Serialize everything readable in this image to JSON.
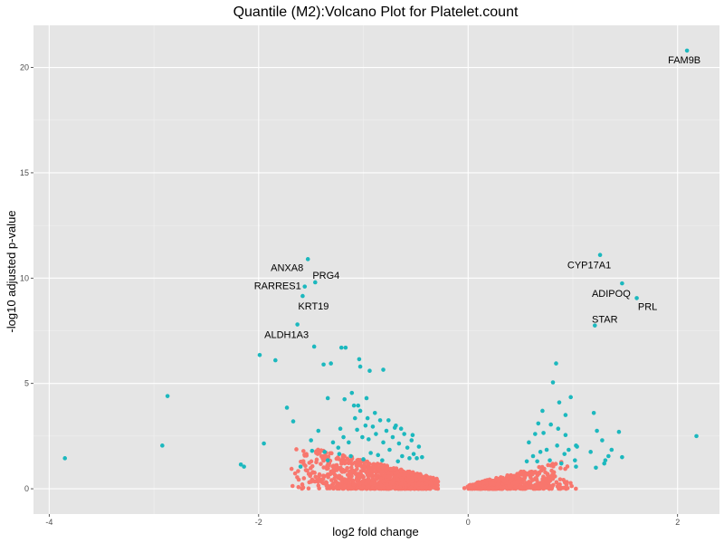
{
  "chart_data": {
    "type": "scatter",
    "title": "Quantile (M2):Volcano Plot for Platelet.count",
    "xlabel": "log2 fold change",
    "ylabel": "-log10 adjusted p-value",
    "xlim": [
      -4.15,
      2.4
    ],
    "ylim": [
      -1.2,
      22
    ],
    "x_ticks": [
      -4,
      -2,
      0,
      2
    ],
    "y_ticks": [
      0,
      5,
      10,
      15,
      20
    ],
    "grid": true,
    "legend": "none",
    "background": "#e5e5e5",
    "colors": {
      "significant": "#1cb8be",
      "not_significant": "#f8766d"
    },
    "series": [
      {
        "color_key": "significant",
        "points": [
          [
            2.09,
            20.8
          ],
          [
            1.26,
            11.1
          ],
          [
            1.47,
            9.75
          ],
          [
            1.61,
            9.05
          ],
          [
            1.21,
            7.75
          ],
          [
            -1.53,
            10.9
          ],
          [
            -1.46,
            9.8
          ],
          [
            -1.56,
            9.6
          ],
          [
            -1.58,
            9.15
          ],
          [
            -1.63,
            7.8
          ],
          [
            -1.99,
            6.35
          ],
          [
            -1.84,
            6.1
          ],
          [
            -1.47,
            6.75
          ],
          [
            -1.21,
            6.7
          ],
          [
            -1.17,
            6.7
          ],
          [
            -1.31,
            5.95
          ],
          [
            -1.38,
            5.9
          ],
          [
            -1.04,
            6.15
          ],
          [
            -1.03,
            5.8
          ],
          [
            -0.94,
            5.6
          ],
          [
            -0.81,
            5.65
          ],
          [
            -1.11,
            4.55
          ],
          [
            -0.97,
            4.3
          ],
          [
            -1.09,
            3.95
          ],
          [
            -1.18,
            4.25
          ],
          [
            -1.34,
            4.3
          ],
          [
            -1.73,
            3.85
          ],
          [
            -1.67,
            3.2
          ],
          [
            -2.87,
            4.4
          ],
          [
            -2.92,
            2.05
          ],
          [
            -3.85,
            1.45
          ],
          [
            -2.14,
            1.05
          ],
          [
            -2.17,
            1.15
          ],
          [
            -1.95,
            2.15
          ],
          [
            -1.6,
            1.05
          ],
          [
            -1.5,
            2.3
          ],
          [
            -1.49,
            1.8
          ],
          [
            -1.43,
            2.75
          ],
          [
            -1.37,
            1.75
          ],
          [
            -1.34,
            1.35
          ],
          [
            -1.29,
            2.2
          ],
          [
            -1.24,
            1.95
          ],
          [
            -1.22,
            2.85
          ],
          [
            -1.19,
            2.45
          ],
          [
            -1.14,
            2.2
          ],
          [
            -1.08,
            3.35
          ],
          [
            -1.06,
            2.8
          ],
          [
            -1.03,
            3.7
          ],
          [
            -1.01,
            2.45
          ],
          [
            -0.98,
            3.0
          ],
          [
            -0.95,
            2.35
          ],
          [
            -0.93,
            1.7
          ],
          [
            -0.91,
            2.95
          ],
          [
            -0.88,
            2.6
          ],
          [
            -0.86,
            1.6
          ],
          [
            -0.84,
            3.25
          ],
          [
            -0.81,
            2.2
          ],
          [
            -0.78,
            2.75
          ],
          [
            -0.75,
            1.85
          ],
          [
            -0.72,
            2.45
          ],
          [
            -0.69,
            3.0
          ],
          [
            -0.66,
            2.15
          ],
          [
            -0.63,
            1.55
          ],
          [
            -0.61,
            2.6
          ],
          [
            -0.58,
            1.95
          ],
          [
            -0.56,
            1.45
          ],
          [
            -0.54,
            2.3
          ],
          [
            -0.52,
            1.65
          ],
          [
            -0.49,
            1.45
          ],
          [
            -0.47,
            2.0
          ],
          [
            -0.44,
            1.5
          ],
          [
            -1.05,
            3.95
          ],
          [
            -0.96,
            3.35
          ],
          [
            -0.89,
            3.6
          ],
          [
            -0.76,
            3.25
          ],
          [
            -0.7,
            2.9
          ],
          [
            -0.64,
            2.85
          ],
          [
            -0.53,
            2.55
          ],
          [
            -1.23,
            1.65
          ],
          [
            -1.12,
            1.55
          ],
          [
            -1.0,
            1.4
          ],
          [
            -0.82,
            1.35
          ],
          [
            -0.67,
            1.3
          ],
          [
            2.18,
            2.5
          ],
          [
            1.44,
            2.7
          ],
          [
            1.34,
            1.55
          ],
          [
            1.3,
            1.2
          ],
          [
            1.28,
            2.3
          ],
          [
            1.23,
            2.75
          ],
          [
            1.22,
            1.0
          ],
          [
            1.2,
            3.6
          ],
          [
            1.17,
            1.75
          ],
          [
            1.04,
            2.0
          ],
          [
            1.03,
            1.05
          ],
          [
            1.02,
            1.35
          ],
          [
            1.03,
            2.05
          ],
          [
            0.98,
            4.35
          ],
          [
            0.96,
            1.85
          ],
          [
            0.93,
            2.55
          ],
          [
            0.93,
            3.5
          ],
          [
            0.92,
            1.65
          ],
          [
            0.89,
            1.2
          ],
          [
            0.86,
            2.85
          ],
          [
            0.85,
            2.05
          ],
          [
            0.84,
            5.95
          ],
          [
            0.81,
            5.05
          ],
          [
            0.79,
            3.05
          ],
          [
            0.78,
            1.35
          ],
          [
            0.75,
            1.85
          ],
          [
            0.72,
            2.65
          ],
          [
            0.69,
            1.75
          ],
          [
            0.67,
            3.1
          ],
          [
            0.66,
            1.3
          ],
          [
            0.64,
            2.6
          ],
          [
            0.62,
            1.55
          ],
          [
            0.58,
            2.2
          ],
          [
            0.56,
            1.3
          ],
          [
            0.71,
            3.7
          ],
          [
            0.87,
            4.1
          ],
          [
            1.37,
            1.85
          ],
          [
            1.31,
            1.35
          ],
          [
            1.47,
            1.5
          ]
        ]
      },
      {
        "color_key": "not_significant",
        "points": []
      }
    ],
    "annotations": [
      {
        "text": "FAM9B",
        "x": 2.09,
        "y": 20.8,
        "dx": -3,
        "dy": 14,
        "anchor": "middle"
      },
      {
        "text": "CYP17A1",
        "x": 1.26,
        "y": 11.1,
        "dx": -12,
        "dy": 15,
        "anchor": "middle"
      },
      {
        "text": "ADIPOQ",
        "x": 1.47,
        "y": 9.75,
        "dx": -12,
        "dy": 15,
        "anchor": "middle"
      },
      {
        "text": "PRL",
        "x": 1.61,
        "y": 9.05,
        "dx": 12,
        "dy": 13,
        "anchor": "middle"
      },
      {
        "text": "STAR",
        "x": 1.21,
        "y": 7.75,
        "dx": 11,
        "dy": -3,
        "anchor": "middle"
      },
      {
        "text": "ANXA8",
        "x": -1.53,
        "y": 10.9,
        "dx": -23,
        "dy": 13,
        "anchor": "middle"
      },
      {
        "text": "PRG4",
        "x": -1.46,
        "y": 9.8,
        "dx": 12,
        "dy": -4,
        "anchor": "middle"
      },
      {
        "text": "RARRES1",
        "x": -1.56,
        "y": 9.6,
        "dx": -30,
        "dy": 3,
        "anchor": "middle"
      },
      {
        "text": "KRT19",
        "x": -1.58,
        "y": 9.15,
        "dx": 12,
        "dy": 15,
        "anchor": "middle"
      },
      {
        "text": "ALDH1A3",
        "x": -1.63,
        "y": 7.8,
        "dx": -12,
        "dy": 15,
        "anchor": "middle"
      }
    ],
    "nonsignificant_cloud": {
      "count": 1700,
      "left_x_range": [
        -1.7,
        0.12
      ],
      "right_x_range": [
        -0.05,
        1.05
      ],
      "max_y": 1.9
    }
  }
}
